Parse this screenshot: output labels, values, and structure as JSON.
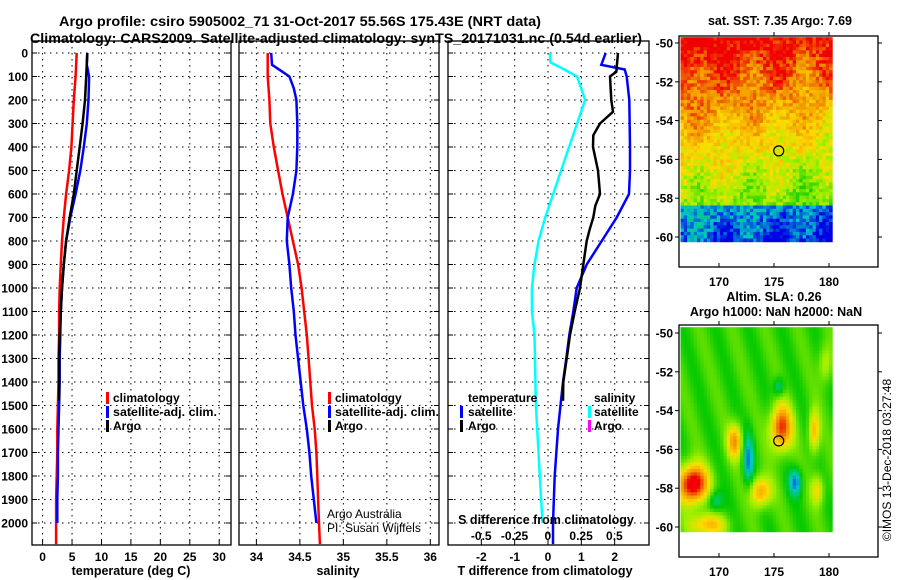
{
  "title_line1": "Argo profile: csiro 5905002_71 31-Oct-2017 55.56S 175.43E (NRT data)",
  "title_line2": "Climatology: CARS2009. Satellite-adjusted climatology: synTS_20171031.nc (0.54d earlier)",
  "colors": {
    "climatology": "#ff0000",
    "satellite": "#0000ff",
    "argo": "#000000",
    "sal_satellite": "#00ffff",
    "sal_argo": "#ff00ff"
  },
  "chart_data": [
    {
      "type": "line",
      "name": "temperature",
      "xlabel": "temperature (deg C)",
      "xlim": [
        -1.8,
        32
      ],
      "xticks": [
        0,
        5,
        10,
        15,
        20,
        25,
        30
      ],
      "ylim": [
        2095,
        0
      ],
      "yticks": [
        0,
        100,
        200,
        300,
        400,
        500,
        600,
        700,
        800,
        900,
        1000,
        1100,
        1200,
        1300,
        1400,
        1500,
        1600,
        1700,
        1800,
        1900,
        2000
      ],
      "legend": [
        "climatology",
        "satellite-adj. clim.",
        "Argo"
      ],
      "series": [
        {
          "name": "climatology",
          "depth": [
            0,
            100,
            200,
            300,
            400,
            500,
            600,
            700,
            800,
            900,
            1000,
            1100,
            1200,
            1300,
            1400,
            1500,
            1600,
            1700,
            1800,
            1900,
            2000,
            2090
          ],
          "values": [
            5.8,
            5.6,
            5.3,
            5.1,
            4.9,
            4.5,
            4.0,
            3.6,
            3.3,
            3.1,
            2.9,
            2.8,
            2.8,
            2.7,
            2.7,
            2.6,
            2.5,
            2.5,
            2.4,
            2.3,
            2.3,
            2.3
          ]
        },
        {
          "name": "satellite-adj. clim.",
          "depth": [
            0,
            50,
            100,
            200,
            300,
            400,
            500,
            600,
            700,
            800,
            900,
            1000,
            1100,
            1200,
            1300,
            1400,
            1500,
            1600,
            1700,
            1800,
            1900,
            2000
          ],
          "values": [
            7.6,
            7.5,
            7.9,
            7.8,
            7.5,
            7.0,
            6.4,
            5.6,
            4.7,
            4.0,
            3.6,
            3.3,
            3.1,
            3.0,
            2.9,
            2.9,
            2.8,
            2.7,
            2.6,
            2.6,
            2.5,
            2.5
          ]
        },
        {
          "name": "Argo",
          "depth": [
            0,
            100,
            200,
            300,
            400,
            500,
            600,
            700,
            800,
            900,
            1000,
            1100,
            1200,
            1300,
            1400,
            1480
          ],
          "values": [
            7.6,
            7.4,
            7.2,
            6.8,
            6.3,
            5.8,
            5.3,
            4.6,
            4.0,
            3.6,
            3.3,
            3.1,
            2.9,
            2.8,
            2.8,
            2.8
          ]
        }
      ]
    },
    {
      "type": "line",
      "name": "salinity",
      "xlabel": "salinity",
      "xlim": [
        33.8,
        36.1
      ],
      "xticks": [
        34,
        34.5,
        35,
        35.5,
        36
      ],
      "ylim": [
        2095,
        0
      ],
      "legend": [
        "climatology",
        "satellite-adj. clim.",
        "Argo"
      ],
      "annotation": [
        "Argo Australia",
        "PI: Susan Wijffels"
      ],
      "series": [
        {
          "name": "climatology",
          "depth": [
            0,
            100,
            200,
            300,
            400,
            500,
            600,
            700,
            800,
            900,
            1000,
            1100,
            1200,
            1300,
            1400,
            1500,
            1600,
            1700,
            1800,
            1900,
            2000,
            2090
          ],
          "values": [
            34.13,
            34.13,
            34.15,
            34.16,
            34.2,
            34.25,
            34.3,
            34.36,
            34.42,
            34.48,
            34.52,
            34.55,
            34.58,
            34.6,
            34.62,
            34.64,
            34.67,
            34.69,
            34.7,
            34.71,
            34.72,
            34.73
          ]
        },
        {
          "name": "satellite-adj. clim.",
          "depth": [
            0,
            50,
            80,
            100,
            150,
            200,
            300,
            400,
            500,
            600,
            700,
            800,
            900,
            1000,
            1100,
            1200,
            1300,
            1400,
            1500,
            1600,
            1700,
            1800,
            1900,
            2000
          ],
          "values": [
            34.17,
            34.18,
            34.3,
            34.38,
            34.43,
            34.46,
            34.47,
            34.47,
            34.46,
            34.42,
            34.36,
            34.35,
            34.38,
            34.4,
            34.43,
            34.45,
            34.48,
            34.51,
            34.54,
            34.58,
            34.61,
            34.63,
            34.66,
            34.69
          ]
        }
      ]
    },
    {
      "type": "line",
      "name": "difference",
      "xlabel": "T difference from climatology",
      "xlim": [
        -3.0,
        3.03
      ],
      "xticks": [
        -2,
        -1,
        0,
        1,
        2
      ],
      "x2label": "S difference from climatology",
      "x2lim": [
        -0.75,
        0.76
      ],
      "x2ticks": [
        "-0.5",
        "-0.25",
        "0",
        "0.25",
        "0.5"
      ],
      "ylim": [
        2095,
        0
      ],
      "legend_temperature": {
        "title": "temperature",
        "items": [
          "satellite",
          "Argo"
        ]
      },
      "legend_salinity": {
        "title": "salinity",
        "items": [
          "satellite",
          "Argo"
        ]
      },
      "series": [
        {
          "name": "T satellite",
          "axis": "T",
          "depth": [
            0,
            50,
            70,
            100,
            200,
            400,
            500,
            600,
            700,
            800,
            900,
            1000,
            1100,
            1200,
            1300,
            1400,
            1600,
            1800,
            2000,
            2090
          ],
          "values": [
            1.73,
            1.6,
            2.3,
            2.36,
            2.44,
            2.46,
            2.46,
            2.43,
            2.06,
            1.61,
            1.16,
            0.86,
            0.76,
            0.64,
            0.55,
            0.45,
            0.3,
            0.2,
            0.15,
            0.15
          ]
        },
        {
          "name": "T Argo",
          "axis": "T",
          "depth": [
            0,
            80,
            100,
            200,
            250,
            300,
            350,
            400,
            500,
            600,
            650,
            700,
            750,
            800,
            900,
            1000,
            1100,
            1200,
            1300,
            1400,
            1480
          ],
          "values": [
            2.1,
            2.05,
            1.86,
            1.9,
            1.95,
            1.56,
            1.36,
            1.35,
            1.5,
            1.56,
            1.42,
            1.36,
            1.25,
            1.16,
            1.06,
            0.96,
            0.8,
            0.66,
            0.56,
            0.46,
            0.45
          ]
        },
        {
          "name": "S satellite",
          "axis": "S",
          "depth": [
            0,
            40,
            60,
            100,
            200,
            300,
            400,
            500,
            600,
            700,
            800,
            900,
            1000,
            1100,
            1200,
            1500,
            1800,
            2000
          ],
          "values": [
            0.015,
            0.02,
            0.09,
            0.22,
            0.28,
            0.22,
            0.16,
            0.1,
            0.04,
            -0.02,
            -0.07,
            -0.1,
            -0.12,
            -0.12,
            -0.1,
            -0.09,
            -0.06,
            -0.04
          ]
        }
      ]
    },
    {
      "type": "heatmap",
      "name": "sst-map",
      "title": "sat. SST: 7.35 Argo: 7.69",
      "xlim": [
        166.3,
        184.4
      ],
      "ylim": [
        -61.6,
        -49.6
      ],
      "xticks": [
        170,
        175,
        180
      ],
      "yticks": [
        -50,
        -52,
        -54,
        -56,
        -58,
        -60
      ],
      "float_position": {
        "lon": 175.43,
        "lat": -55.56
      }
    },
    {
      "type": "heatmap",
      "name": "sla-map",
      "title": "Altim. SLA: 0.26",
      "subtitle": "Argo h1000: NaN h2000: NaN",
      "xlim": [
        166.3,
        184.4
      ],
      "ylim": [
        -61.6,
        -49.6
      ],
      "xticks": [
        170,
        175,
        180
      ],
      "yticks": [
        -50,
        -52,
        -54,
        -56,
        -58,
        -60
      ],
      "float_position": {
        "lon": 175.43,
        "lat": -55.56
      }
    }
  ],
  "copyright": "©IMOS 13-Dec-2018 03:27:48"
}
